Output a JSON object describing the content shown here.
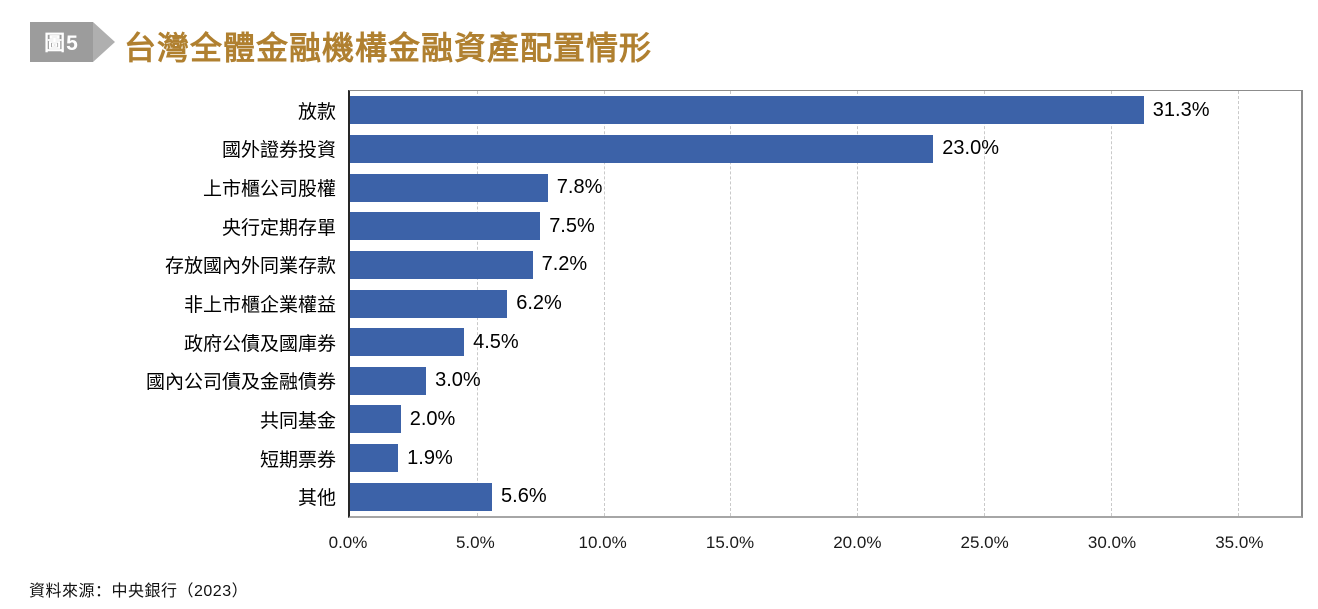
{
  "header": {
    "figure_badge": "圖5",
    "title": "台灣全體金融機構金融資產配置情形"
  },
  "footer": {
    "source": "資料來源：中央銀行（2023）"
  },
  "colors": {
    "bar": "#3c62a8",
    "title": "#b08030",
    "badge_body": "#9c9c9c",
    "badge_tip": "#afafaf",
    "gridline": "#c9c9c9"
  },
  "chart_data": {
    "type": "bar",
    "orientation": "horizontal",
    "title": "台灣全體金融機構金融資產配置情形",
    "categories": [
      "放款",
      "國外證券投資",
      "上市櫃公司股權",
      "央行定期存單",
      "存放國內外同業存款",
      "非上市櫃企業權益",
      "政府公債及國庫券",
      "國內公司債及金融債券",
      "共同基金",
      "短期票券",
      "其他"
    ],
    "values": [
      31.3,
      23.0,
      7.8,
      7.5,
      7.2,
      6.2,
      4.5,
      3.0,
      2.0,
      1.9,
      5.6
    ],
    "value_labels": [
      "31.3%",
      "23.0%",
      "7.8%",
      "7.5%",
      "7.2%",
      "6.2%",
      "4.5%",
      "3.0%",
      "2.0%",
      "1.9%",
      "5.6%"
    ],
    "xlabel": "",
    "ylabel": "",
    "x_ticks": [
      {
        "value": 0,
        "label": "0.0%"
      },
      {
        "value": 5,
        "label": "5.0%"
      },
      {
        "value": 10,
        "label": "10.0%"
      },
      {
        "value": 15,
        "label": "15.0%"
      },
      {
        "value": 20,
        "label": "20.0%"
      },
      {
        "value": 25,
        "label": "25.0%"
      },
      {
        "value": 30,
        "label": "30.0%"
      },
      {
        "value": 35,
        "label": "35.0%"
      }
    ],
    "xlim": [
      0,
      37.5
    ],
    "grid": "vertical-dashed",
    "legend": "none"
  }
}
